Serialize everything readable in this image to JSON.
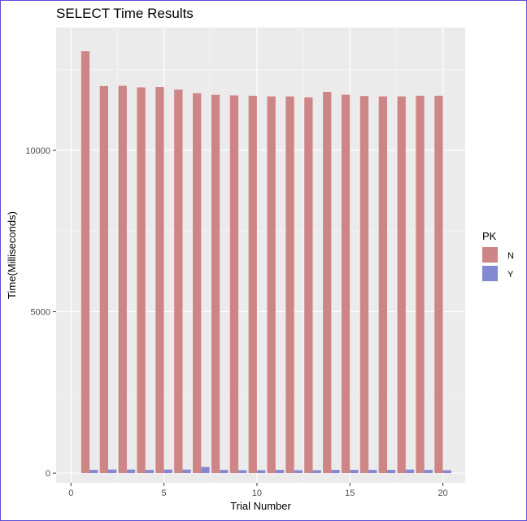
{
  "chart_data": {
    "type": "bar",
    "title": "SELECT Time Results",
    "xlabel": "Trial Number",
    "ylabel": "Time(Milliseconds)",
    "xlim": [
      -0.8,
      21.2
    ],
    "ylim": [
      -300,
      13800
    ],
    "x_ticks": [
      0,
      5,
      10,
      15,
      20
    ],
    "y_ticks": [
      0,
      5000,
      10000
    ],
    "grid": true,
    "legend": {
      "title": "PK",
      "placement": "right"
    },
    "x": [
      1,
      2,
      3,
      4,
      5,
      6,
      7,
      8,
      9,
      10,
      11,
      12,
      13,
      14,
      15,
      16,
      17,
      18,
      19,
      20
    ],
    "series": [
      {
        "name": "N",
        "color": "#cd8585",
        "values": [
          13070,
          11990,
          12000,
          11950,
          11960,
          11880,
          11770,
          11720,
          11700,
          11690,
          11670,
          11670,
          11640,
          11810,
          11720,
          11680,
          11670,
          11670,
          11690,
          11690
        ]
      },
      {
        "name": "Y",
        "color": "#8487d1",
        "values": [
          100,
          110,
          110,
          100,
          110,
          110,
          190,
          100,
          90,
          90,
          100,
          90,
          90,
          100,
          100,
          100,
          100,
          110,
          100,
          90
        ]
      }
    ]
  }
}
